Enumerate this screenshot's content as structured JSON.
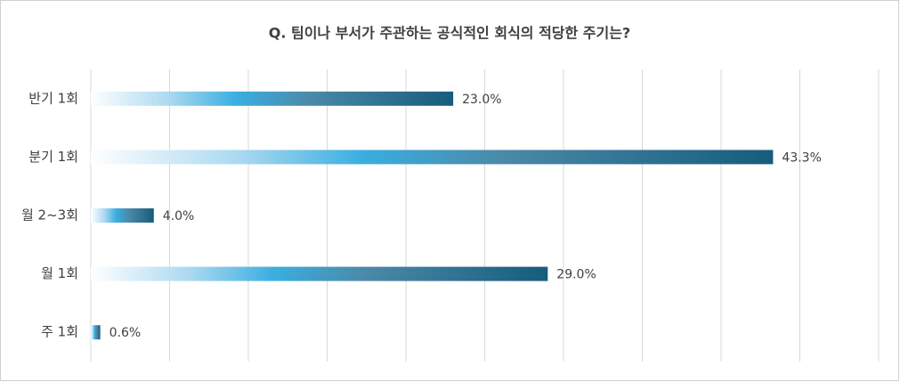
{
  "chart_data": {
    "type": "bar",
    "orientation": "horizontal",
    "title": "Q. 팀이나 부서가 주관하는 공식적인 회식의 적당한 주기는?",
    "categories": [
      "반기 1회",
      "분기 1회",
      "월 2~3회",
      "월 1회",
      "주 1회"
    ],
    "values": [
      23.0,
      43.3,
      4.0,
      29.0,
      0.6
    ],
    "value_labels": [
      "23.0%",
      "43.3%",
      "4.0%",
      "29.0%",
      "0.6%"
    ],
    "color": "#1a5e80",
    "xlim": [
      0,
      50
    ],
    "xticks": [
      0,
      5,
      10,
      15,
      20,
      25,
      30,
      35,
      40,
      45,
      50
    ],
    "grid": true
  }
}
